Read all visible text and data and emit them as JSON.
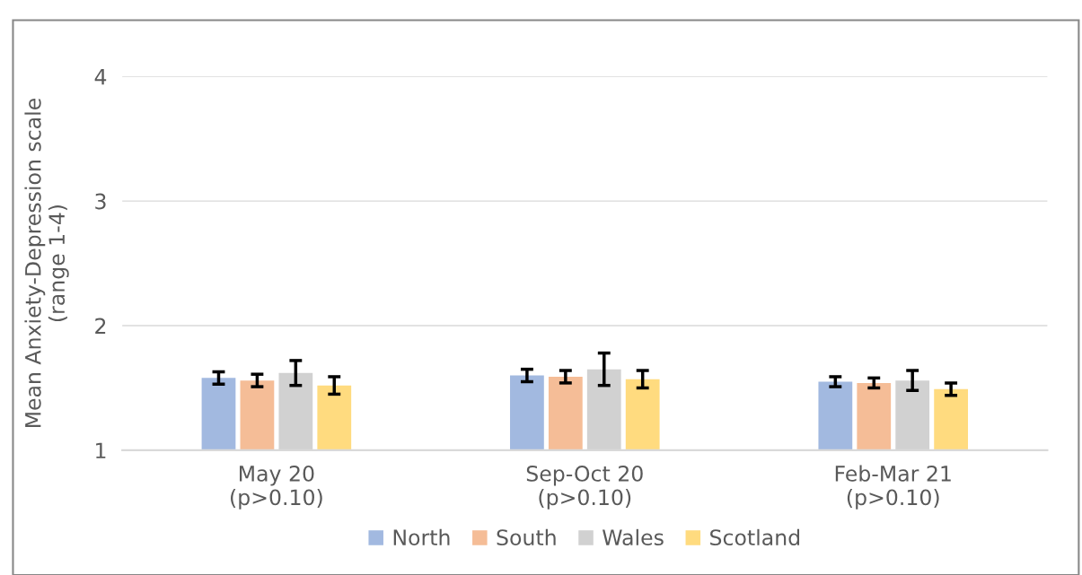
{
  "chart_data": {
    "type": "bar",
    "ylabel": "Mean Anxiety-Depression scale\n(range 1-4)",
    "categories": [
      "May 20\n(p>0.10)",
      "Sep-Oct 20\n(p>0.10)",
      "Feb-Mar 21\n(p>0.10)"
    ],
    "series": [
      {
        "name": "North",
        "color": "#a2b9e0",
        "values": [
          1.58,
          1.6,
          1.55
        ],
        "errors": [
          0.05,
          0.05,
          0.04
        ]
      },
      {
        "name": "South",
        "color": "#f5bd97",
        "values": [
          1.56,
          1.59,
          1.54
        ],
        "errors": [
          0.05,
          0.05,
          0.04
        ]
      },
      {
        "name": "Wales",
        "color": "#d1d1d1",
        "values": [
          1.62,
          1.65,
          1.56
        ],
        "errors": [
          0.1,
          0.13,
          0.08
        ]
      },
      {
        "name": "Scotland",
        "color": "#ffdb7f",
        "values": [
          1.52,
          1.57,
          1.49
        ],
        "errors": [
          0.07,
          0.07,
          0.05
        ]
      }
    ],
    "ylim": [
      1,
      4
    ],
    "yticks": [
      1,
      2,
      3,
      4
    ],
    "grid": "y",
    "legend": "bottom"
  }
}
